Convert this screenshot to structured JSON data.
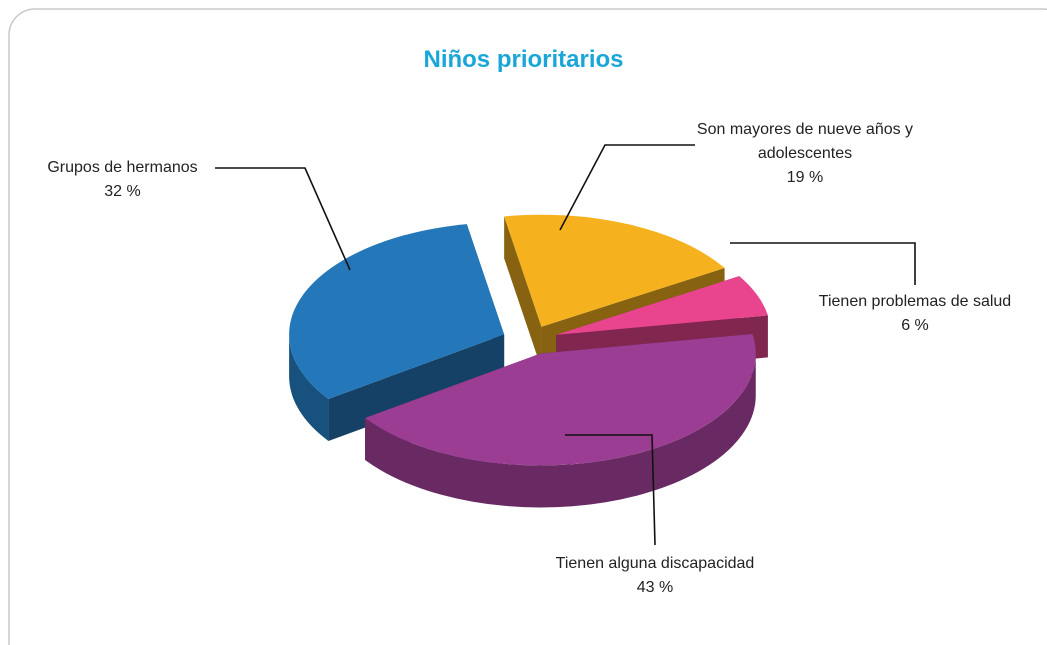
{
  "chart_data": {
    "type": "pie",
    "title": "Niños prioritarios",
    "categories": [
      "Son mayores de nueve años y adolescentes",
      "Tienen problemas de salud",
      "Tienen alguna discapacidad",
      "Grupos de hermanos"
    ],
    "values": [
      19,
      6,
      43,
      32
    ],
    "value_labels": [
      "19 %",
      "6 %",
      "43 %",
      "32 %"
    ],
    "colors": [
      "#f5b21e",
      "#e9458f",
      "#9b3e93",
      "#2477b8"
    ]
  }
}
